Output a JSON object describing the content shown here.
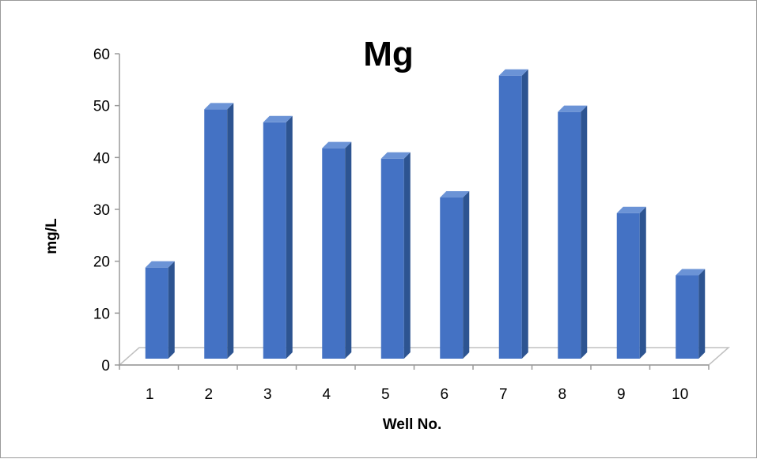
{
  "chart_data": {
    "type": "bar",
    "title": "Mg",
    "xlabel": "Well No.",
    "ylabel": "mg/L",
    "categories": [
      "1",
      "2",
      "3",
      "4",
      "5",
      "6",
      "7",
      "8",
      "9",
      "10"
    ],
    "values": [
      20,
      50.5,
      48,
      43,
      41,
      33.5,
      57,
      50,
      30.5,
      18.5
    ],
    "ylim": [
      0,
      60
    ],
    "yticks": [
      "0",
      "10",
      "20",
      "30",
      "40",
      "50",
      "60"
    ],
    "grid": false,
    "legend": "none",
    "style": "3d-column"
  },
  "colors": {
    "bar_front": "#4472C4",
    "bar_side": "#2D5491",
    "bar_top": "#6B93D6",
    "axis": "#9a9a9a",
    "floor_line": "#c0c0c0"
  }
}
